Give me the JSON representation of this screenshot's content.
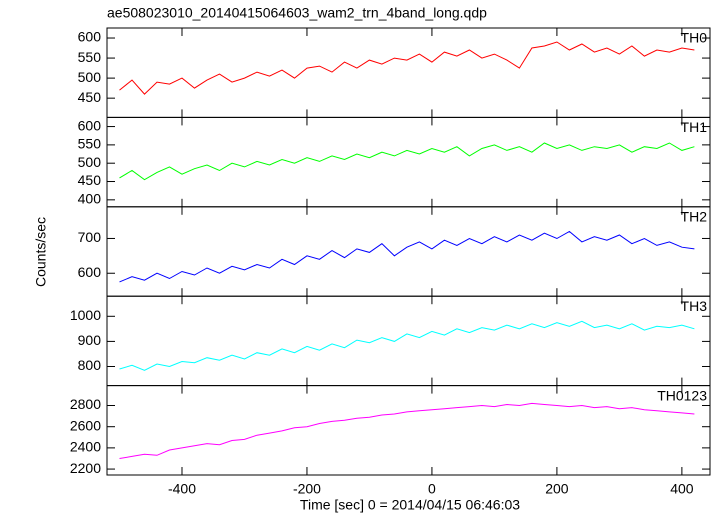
{
  "chart_data": {
    "type": "line",
    "title": "ae508023010_20140415064603_wam2_trn_4band_long.qdp",
    "xlabel": "Time [sec] 0 = 2014/04/15 06:46:03",
    "ylabel": "Counts/sec",
    "xlim": [
      -520,
      445
    ],
    "xticks": [
      -400,
      -200,
      0,
      200,
      400
    ],
    "x": [
      -500,
      -480,
      -460,
      -440,
      -420,
      -400,
      -380,
      -360,
      -340,
      -320,
      -300,
      -280,
      -260,
      -240,
      -220,
      -200,
      -180,
      -160,
      -140,
      -120,
      -100,
      -80,
      -60,
      -40,
      -20,
      0,
      20,
      40,
      60,
      80,
      100,
      120,
      140,
      160,
      180,
      200,
      220,
      240,
      260,
      280,
      300,
      320,
      340,
      360,
      380,
      400,
      420
    ],
    "series": [
      {
        "name": "TH0",
        "color": "#ff0000",
        "ylim": [
          402,
          625
        ],
        "yticks": [
          450,
          500,
          550,
          600
        ],
        "values": [
          470,
          495,
          460,
          490,
          485,
          500,
          475,
          495,
          510,
          490,
          500,
          515,
          505,
          520,
          500,
          525,
          530,
          515,
          540,
          525,
          545,
          535,
          550,
          545,
          560,
          540,
          565,
          555,
          570,
          550,
          560,
          545,
          525,
          575,
          580,
          590,
          570,
          585,
          565,
          575,
          560,
          580,
          555,
          570,
          565,
          575,
          570
        ]
      },
      {
        "name": "TH1",
        "color": "#00ff00",
        "ylim": [
          381,
          625
        ],
        "yticks": [
          400,
          450,
          500,
          550,
          600
        ],
        "values": [
          460,
          480,
          455,
          475,
          490,
          470,
          485,
          495,
          480,
          500,
          490,
          505,
          495,
          510,
          500,
          515,
          505,
          520,
          510,
          525,
          515,
          530,
          520,
          535,
          525,
          540,
          530,
          545,
          520,
          540,
          550,
          535,
          545,
          530,
          555,
          540,
          550,
          535,
          545,
          540,
          550,
          530,
          545,
          540,
          555,
          535,
          545
        ]
      },
      {
        "name": "TH2",
        "color": "#0000ff",
        "ylim": [
          534,
          791
        ],
        "yticks": [
          600,
          700
        ],
        "values": [
          575,
          590,
          580,
          600,
          585,
          605,
          595,
          615,
          600,
          620,
          610,
          625,
          615,
          640,
          625,
          650,
          640,
          665,
          645,
          670,
          660,
          685,
          650,
          675,
          690,
          670,
          695,
          680,
          700,
          685,
          705,
          690,
          710,
          695,
          715,
          700,
          720,
          690,
          705,
          695,
          710,
          685,
          700,
          680,
          690,
          675,
          670
        ]
      },
      {
        "name": "TH3",
        "color": "#00ffff",
        "ylim": [
          724,
          1080
        ],
        "yticks": [
          800,
          900,
          1000
        ],
        "values": [
          790,
          805,
          785,
          810,
          800,
          820,
          815,
          835,
          825,
          845,
          830,
          855,
          845,
          870,
          855,
          880,
          865,
          890,
          875,
          905,
          895,
          915,
          900,
          930,
          915,
          940,
          925,
          950,
          935,
          955,
          945,
          965,
          950,
          970,
          955,
          975,
          960,
          980,
          955,
          965,
          950,
          970,
          945,
          960,
          955,
          965,
          950
        ]
      },
      {
        "name": "TH0123",
        "color": "#ff00ff",
        "ylim": [
          2144,
          2988
        ],
        "yticks": [
          2200,
          2400,
          2600,
          2800
        ],
        "values": [
          2300,
          2320,
          2340,
          2330,
          2380,
          2400,
          2420,
          2440,
          2430,
          2470,
          2480,
          2520,
          2540,
          2560,
          2590,
          2600,
          2630,
          2650,
          2660,
          2680,
          2690,
          2710,
          2720,
          2740,
          2750,
          2760,
          2770,
          2780,
          2790,
          2800,
          2790,
          2810,
          2800,
          2820,
          2810,
          2800,
          2790,
          2800,
          2780,
          2790,
          2770,
          2780,
          2760,
          2750,
          2740,
          2730,
          2720
        ]
      }
    ]
  }
}
